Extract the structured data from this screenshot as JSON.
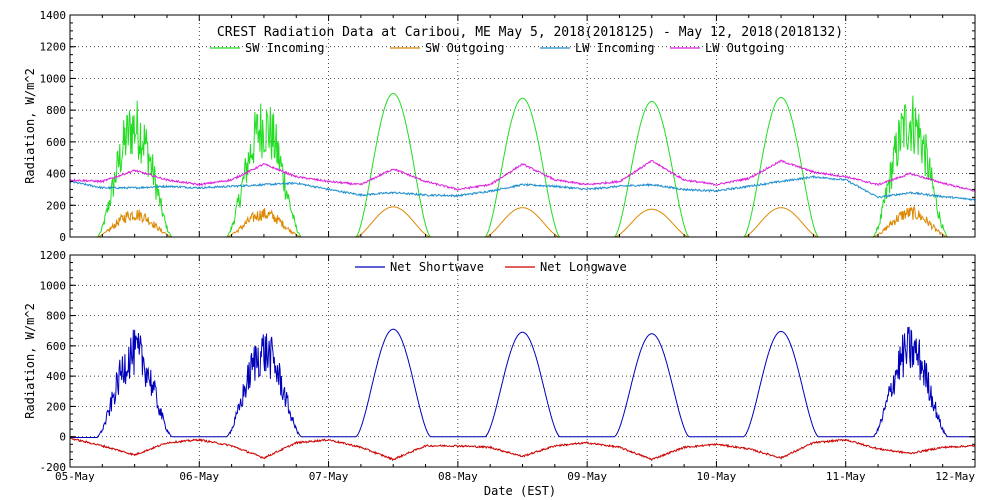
{
  "chart_data": [
    {
      "type": "line",
      "title": "CREST Radiation Data at Caribou, ME   May  5, 2018(2018125) - May 12, 2018(2018132)",
      "xlabel": "",
      "ylabel": "Radiation, W/m^2",
      "ylim": [
        0,
        1400
      ],
      "yticks": [
        0,
        200,
        400,
        600,
        800,
        1000,
        1200,
        1400
      ],
      "xlim": [
        0,
        7
      ],
      "grid": true,
      "legend_position": "top",
      "series": [
        {
          "name": "SW Incoming",
          "color": "#22dd22",
          "day_peaks": [
            890,
            900,
            905,
            875,
            855,
            880,
            940
          ]
        },
        {
          "name": "SW Outgoing",
          "color": "#dd8800",
          "day_peaks": [
            185,
            185,
            190,
            185,
            175,
            185,
            195
          ]
        },
        {
          "name": "LW Incoming",
          "color": "#1f8fcf",
          "x": [
            0,
            0.25,
            0.5,
            0.75,
            1.0,
            1.25,
            1.5,
            1.75,
            2.0,
            2.25,
            2.5,
            2.75,
            3.0,
            3.25,
            3.5,
            3.75,
            4.0,
            4.25,
            4.5,
            4.75,
            5.0,
            5.25,
            5.5,
            5.75,
            6.0,
            6.25,
            6.5,
            6.75,
            7.0
          ],
          "y": [
            350,
            310,
            310,
            320,
            310,
            320,
            330,
            340,
            300,
            265,
            280,
            265,
            260,
            290,
            330,
            320,
            300,
            320,
            330,
            300,
            290,
            320,
            350,
            380,
            360,
            250,
            280,
            255,
            235
          ]
        },
        {
          "name": "LW Outgoing",
          "color": "#dd22dd",
          "x": [
            0,
            0.25,
            0.5,
            0.75,
            1.0,
            1.25,
            1.5,
            1.75,
            2.0,
            2.25,
            2.5,
            2.75,
            3.0,
            3.25,
            3.5,
            3.75,
            4.0,
            4.25,
            4.5,
            4.75,
            5.0,
            5.25,
            5.5,
            5.75,
            6.0,
            6.25,
            6.5,
            6.75,
            7.0
          ],
          "y": [
            360,
            350,
            420,
            360,
            330,
            360,
            460,
            380,
            350,
            330,
            430,
            350,
            300,
            330,
            460,
            360,
            330,
            350,
            480,
            360,
            330,
            370,
            480,
            410,
            380,
            330,
            400,
            340,
            290
          ]
        }
      ]
    },
    {
      "type": "line",
      "title": "",
      "xlabel": "Date (EST)",
      "ylabel": "Radiation, W/m^2",
      "ylim": [
        -200,
        1200
      ],
      "yticks": [
        -200,
        0,
        200,
        400,
        600,
        800,
        1000,
        1200
      ],
      "xlim": [
        0,
        7
      ],
      "grid": true,
      "legend_position": "top",
      "categories": [
        "05-May",
        "06-May",
        "07-May",
        "08-May",
        "09-May",
        "10-May",
        "11-May",
        "12-May"
      ],
      "series": [
        {
          "name": "Net Shortwave",
          "color": "#0000bb",
          "day_peaks": [
            710,
            720,
            710,
            690,
            680,
            695,
            740
          ]
        },
        {
          "name": "Net Longwave",
          "color": "#cc0000",
          "x": [
            0,
            0.25,
            0.5,
            0.75,
            1.0,
            1.25,
            1.5,
            1.75,
            2.0,
            2.25,
            2.5,
            2.75,
            3.0,
            3.25,
            3.5,
            3.75,
            4.0,
            4.25,
            4.5,
            4.75,
            5.0,
            5.25,
            5.5,
            5.75,
            6.0,
            6.25,
            6.5,
            6.75,
            7.0
          ],
          "y": [
            -10,
            -60,
            -120,
            -40,
            -20,
            -60,
            -140,
            -40,
            -20,
            -70,
            -150,
            -60,
            -60,
            -70,
            -130,
            -60,
            -40,
            -70,
            -150,
            -70,
            -50,
            -80,
            -140,
            -40,
            -20,
            -80,
            -110,
            -70,
            -60
          ]
        }
      ]
    }
  ]
}
